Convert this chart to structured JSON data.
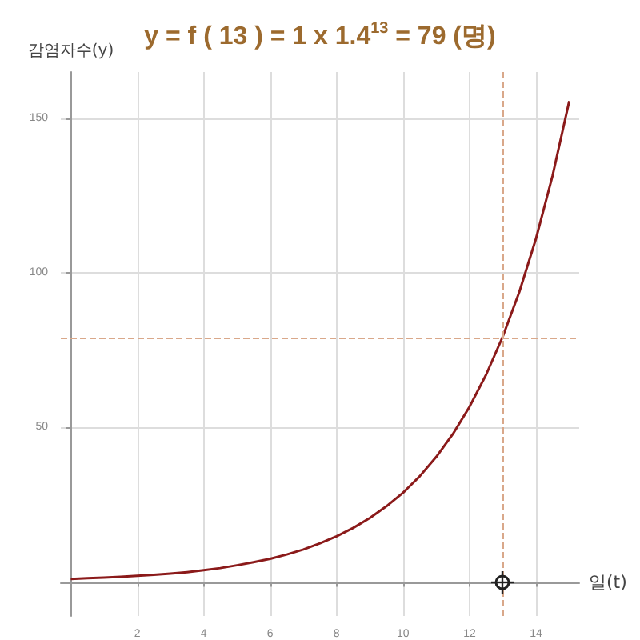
{
  "chart_data": {
    "type": "line",
    "title": "y = f ( 13 ) = 1 x 1.4$^{13}$ = 79 (명)",
    "xlabel": "일(t)",
    "ylabel": "감염자수(y)",
    "series": [
      {
        "color": "#8b1a1a",
        "x": [
          0,
          0.5,
          1,
          1.5,
          2,
          2.5,
          3,
          3.5,
          4,
          4.5,
          5,
          5.5,
          6,
          6.5,
          7,
          7.5,
          8,
          8.5,
          9,
          9.5,
          10,
          10.5,
          11,
          11.5,
          12,
          12.5,
          13,
          13.5,
          14,
          14.5,
          15
        ],
        "values": [
          1,
          1.2,
          1.4,
          1.7,
          2,
          2.3,
          2.7,
          3.2,
          3.8,
          4.5,
          5.4,
          6.4,
          7.5,
          8.9,
          10.5,
          12.5,
          14.8,
          17.5,
          20.7,
          24.5,
          28.9,
          34.2,
          40.5,
          47.9,
          56.7,
          67.1,
          79.4,
          93.9,
          111.1,
          131.5,
          155.6
        ]
      }
    ],
    "xlim": [
      -0.3,
      15.3
    ],
    "ylim": [
      -11,
      165
    ],
    "xticks": [
      2,
      4,
      6,
      8,
      10,
      12,
      14
    ],
    "yticks": [
      50,
      100,
      150
    ],
    "grid": true,
    "marker": "none",
    "line_style": "solid",
    "ref_lines": [
      {
        "axis": "x",
        "value": 13,
        "color": "#d9a88a",
        "line_style": "dashed"
      },
      {
        "axis": "y",
        "value": 79,
        "color": "#d9a88a",
        "line_style": "dashed"
      }
    ]
  }
}
